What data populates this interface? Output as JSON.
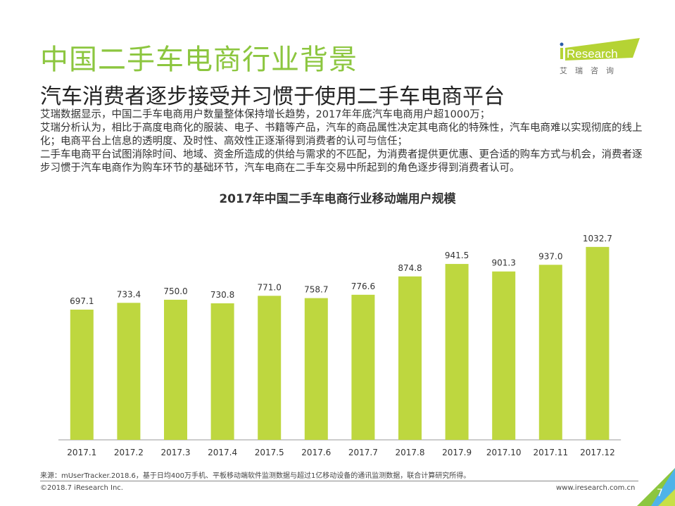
{
  "header": {
    "title": "中国二手车电商行业背景",
    "subtitle": "汽车消费者逐步接受并习惯于使用二手车电商平台"
  },
  "logo": {
    "brand": "iResearch",
    "cn": "艾 瑞 咨 询",
    "color": "#b5d334"
  },
  "description": [
    "艾瑞数据显示，中国二手车电商用户数量整体保持增长趋势，2017年年底汽车电商用户超1000万；",
    "艾瑞分析认为，相比于高度电商化的服装、电子、书籍等产品，汽车的商品属性决定其电商化的特殊性，汽车电商难以实现彻底的线上化；电商平台上信息的透明度、及时性、高效性正逐渐得到消费者的认可与信任；",
    "二手车电商平台试图消除时间、地域、资金所造成的供给与需求的不匹配，为消费者提供更优惠、更合适的购车方式与机会，消费者逐步习惯于汽车电商作为购车环节的基础环节，汽车电商在二手车交易中所起到的角色逐步得到消费者认可。"
  ],
  "chart_data": {
    "type": "bar",
    "title": "2017年中国二手车电商行业移动端用户规模",
    "categories": [
      "2017.1",
      "2017.2",
      "2017.3",
      "2017.4",
      "2017.5",
      "2017.6",
      "2017.7",
      "2017.8",
      "2017.9",
      "2017.10",
      "2017.11",
      "2017.12"
    ],
    "values": [
      697.1,
      733.4,
      750.0,
      730.8,
      771.0,
      758.7,
      776.6,
      874.8,
      941.5,
      901.3,
      937.0,
      1032.7
    ],
    "labels": [
      "697.1",
      "733.4",
      "750.0",
      "730.8",
      "771.0",
      "758.7",
      "776.6",
      "874.8",
      "941.5",
      "901.3",
      "937.0",
      "1032.7"
    ],
    "ylim": [
      0,
      1100
    ],
    "grid": false,
    "bar_color": "#bed73f"
  },
  "footer": {
    "source": "来源：mUserTracker.2018.6，基于日均400万手机、平板移动端软件监测数据与超过1亿移动设备的通讯监测数据，联合计算研究所得。",
    "copyright": "©2018.7 iResearch Inc.",
    "website": "www.iresearch.com.cn",
    "page": "7"
  }
}
